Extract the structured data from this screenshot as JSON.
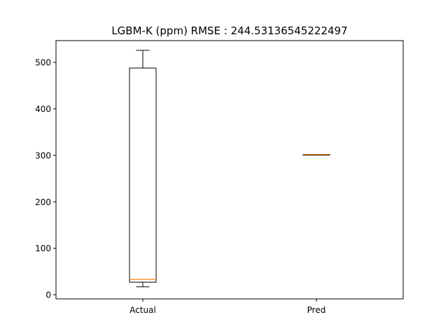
{
  "chart_data": {
    "type": "box",
    "title": "LGBM-K (ppm) RMSE : 244.53136545222497",
    "xlabel": "",
    "ylabel": "",
    "categories": [
      "Actual",
      "Pred"
    ],
    "boxes": [
      {
        "label": "Actual",
        "whisker_low": 17,
        "q1": 27,
        "median": 33,
        "q3": 488,
        "whisker_high": 526
      },
      {
        "label": "Pred",
        "whisker_low": 301,
        "q1": 301,
        "median": 302,
        "q3": 302,
        "whisker_high": 302
      }
    ],
    "ylim": [
      -9,
      547
    ],
    "yticks": [
      0,
      100,
      200,
      300,
      400,
      500
    ],
    "grid": false,
    "colors": {
      "box": "#000000",
      "median": "#ff7f0e",
      "axes": "#000000"
    }
  }
}
